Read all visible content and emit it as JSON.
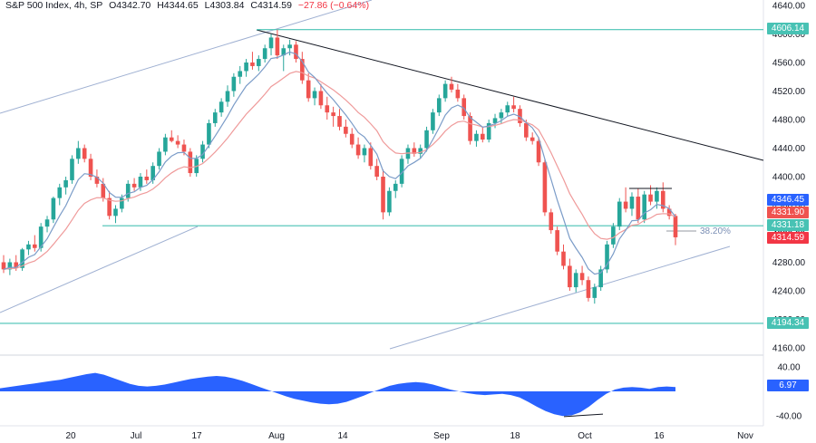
{
  "header": {
    "symbol": "S&P 500 Index, 4h, SP",
    "open": "O4342.70",
    "high": "H4344.65",
    "low": "L4303.84",
    "close": "C4314.59",
    "change": "−27.86 (−0.64%)"
  },
  "price_axis_labels": [
    "4640.00",
    "4600.00",
    "4560.00",
    "4520.00",
    "4480.00",
    "4440.00",
    "4400.00",
    "4360.00",
    "4320.00",
    "4280.00",
    "4240.00",
    "4200.00",
    "4160.00"
  ],
  "time_axis_labels": [
    "20",
    "Jul",
    "17",
    "Aug",
    "14",
    "Sep",
    "18",
    "Oct",
    "16",
    "Nov"
  ],
  "tags": {
    "level_high": "4606.14",
    "ema_fast": "4346.45",
    "ema_slow": "4331.90",
    "level_mid": "4331.18",
    "last_price": "4314.59",
    "level_low": "4194.34"
  },
  "fib_label": "38.20%",
  "osc": {
    "labels": [
      "40.00",
      "-40.00"
    ],
    "last_value": "6.97"
  },
  "colors": {
    "up": "#26a69a",
    "down": "#ef5350",
    "fast_ma": "#7b9cc8",
    "slow_ma": "#ef9a9a",
    "level": "#48c2b4",
    "channel": "#9fb0d2",
    "trend": "#131722",
    "osc_fill": "#2962ff"
  },
  "chart_data": {
    "type": "candlestick",
    "y_range": [
      4160,
      4640
    ],
    "horizontal_levels": [
      4606.14,
      4331.18,
      4194.34
    ],
    "candles_ohlc": [
      [
        4280,
        4290,
        4265,
        4270
      ],
      [
        4270,
        4285,
        4262,
        4280
      ],
      [
        4280,
        4290,
        4268,
        4272
      ],
      [
        4272,
        4300,
        4268,
        4298
      ],
      [
        4298,
        4310,
        4290,
        4305
      ],
      [
        4305,
        4318,
        4295,
        4300
      ],
      [
        4300,
        4335,
        4295,
        4330
      ],
      [
        4330,
        4345,
        4322,
        4340
      ],
      [
        4340,
        4372,
        4335,
        4370
      ],
      [
        4370,
        4390,
        4360,
        4385
      ],
      [
        4385,
        4400,
        4375,
        4395
      ],
      [
        4395,
        4430,
        4390,
        4425
      ],
      [
        4425,
        4450,
        4418,
        4440
      ],
      [
        4440,
        4445,
        4420,
        4425
      ],
      [
        4425,
        4432,
        4395,
        4400
      ],
      [
        4400,
        4410,
        4385,
        4390
      ],
      [
        4390,
        4398,
        4365,
        4370
      ],
      [
        4370,
        4380,
        4340,
        4345
      ],
      [
        4345,
        4360,
        4335,
        4355
      ],
      [
        4355,
        4375,
        4350,
        4370
      ],
      [
        4370,
        4395,
        4365,
        4390
      ],
      [
        4390,
        4398,
        4380,
        4385
      ],
      [
        4385,
        4405,
        4380,
        4400
      ],
      [
        4400,
        4410,
        4390,
        4395
      ],
      [
        4395,
        4420,
        4390,
        4415
      ],
      [
        4415,
        4440,
        4410,
        4435
      ],
      [
        4435,
        4460,
        4430,
        4455
      ],
      [
        4455,
        4465,
        4448,
        4450
      ],
      [
        4450,
        4458,
        4440,
        4445
      ],
      [
        4445,
        4452,
        4430,
        4435
      ],
      [
        4435,
        4440,
        4400,
        4405
      ],
      [
        4405,
        4430,
        4400,
        4425
      ],
      [
        4425,
        4450,
        4420,
        4445
      ],
      [
        4445,
        4480,
        4440,
        4475
      ],
      [
        4475,
        4495,
        4470,
        4490
      ],
      [
        4490,
        4510,
        4484,
        4505
      ],
      [
        4505,
        4528,
        4498,
        4520
      ],
      [
        4520,
        4545,
        4512,
        4540
      ],
      [
        4540,
        4555,
        4530,
        4548
      ],
      [
        4548,
        4565,
        4540,
        4560
      ],
      [
        4560,
        4575,
        4550,
        4555
      ],
      [
        4555,
        4570,
        4548,
        4565
      ],
      [
        4565,
        4585,
        4560,
        4580
      ],
      [
        4580,
        4600,
        4570,
        4595
      ],
      [
        4595,
        4606,
        4565,
        4570
      ],
      [
        4570,
        4585,
        4548,
        4580
      ],
      [
        4580,
        4592,
        4570,
        4585
      ],
      [
        4585,
        4590,
        4560,
        4565
      ],
      [
        4565,
        4575,
        4530,
        4535
      ],
      [
        4535,
        4545,
        4505,
        4510
      ],
      [
        4510,
        4525,
        4500,
        4520
      ],
      [
        4520,
        4530,
        4495,
        4500
      ],
      [
        4500,
        4512,
        4480,
        4490
      ],
      [
        4490,
        4498,
        4470,
        4485
      ],
      [
        4485,
        4495,
        4465,
        4470
      ],
      [
        4470,
        4480,
        4455,
        4460
      ],
      [
        4460,
        4468,
        4440,
        4445
      ],
      [
        4445,
        4455,
        4425,
        4430
      ],
      [
        4430,
        4445,
        4420,
        4440
      ],
      [
        4440,
        4448,
        4410,
        4415
      ],
      [
        4415,
        4425,
        4395,
        4400
      ],
      [
        4400,
        4410,
        4340,
        4350
      ],
      [
        4350,
        4385,
        4345,
        4380
      ],
      [
        4380,
        4395,
        4370,
        4390
      ],
      [
        4390,
        4430,
        4385,
        4425
      ],
      [
        4425,
        4445,
        4418,
        4440
      ],
      [
        4440,
        4448,
        4428,
        4432
      ],
      [
        4432,
        4445,
        4425,
        4440
      ],
      [
        4440,
        4470,
        4435,
        4465
      ],
      [
        4465,
        4495,
        4460,
        4490
      ],
      [
        4490,
        4515,
        4485,
        4510
      ],
      [
        4510,
        4535,
        4505,
        4530
      ],
      [
        4530,
        4540,
        4518,
        4522
      ],
      [
        4522,
        4530,
        4505,
        4510
      ],
      [
        4510,
        4515,
        4480,
        4485
      ],
      [
        4485,
        4490,
        4445,
        4450
      ],
      [
        4450,
        4465,
        4442,
        4460
      ],
      [
        4460,
        4470,
        4448,
        4452
      ],
      [
        4452,
        4480,
        4448,
        4475
      ],
      [
        4475,
        4488,
        4468,
        4482
      ],
      [
        4482,
        4495,
        4475,
        4490
      ],
      [
        4490,
        4505,
        4485,
        4500
      ],
      [
        4500,
        4512,
        4490,
        4495
      ],
      [
        4495,
        4500,
        4470,
        4475
      ],
      [
        4475,
        4480,
        4450,
        4455
      ],
      [
        4455,
        4462,
        4445,
        4450
      ],
      [
        4450,
        4455,
        4415,
        4420
      ],
      [
        4420,
        4425,
        4345,
        4350
      ],
      [
        4350,
        4355,
        4320,
        4325
      ],
      [
        4325,
        4330,
        4290,
        4295
      ],
      [
        4295,
        4305,
        4270,
        4275
      ],
      [
        4275,
        4285,
        4240,
        4245
      ],
      [
        4245,
        4270,
        4238,
        4265
      ],
      [
        4265,
        4275,
        4248,
        4255
      ],
      [
        4255,
        4260,
        4225,
        4230
      ],
      [
        4230,
        4250,
        4222,
        4245
      ],
      [
        4245,
        4275,
        4240,
        4270
      ],
      [
        4270,
        4310,
        4265,
        4305
      ],
      [
        4305,
        4335,
        4300,
        4330
      ],
      [
        4330,
        4370,
        4325,
        4365
      ],
      [
        4365,
        4385,
        4350,
        4355
      ],
      [
        4355,
        4378,
        4345,
        4372
      ],
      [
        4372,
        4384,
        4335,
        4340
      ],
      [
        4340,
        4380,
        4335,
        4375
      ],
      [
        4375,
        4388,
        4360,
        4365
      ],
      [
        4365,
        4385,
        4355,
        4380
      ],
      [
        4380,
        4392,
        4350,
        4355
      ],
      [
        4355,
        4360,
        4340,
        4345
      ],
      [
        4345,
        4348,
        4304,
        4315
      ]
    ],
    "oscillator_range": [
      -50,
      50
    ],
    "oscillator_values": [
      5,
      7,
      9,
      11,
      13,
      15,
      17,
      19,
      22,
      25,
      28,
      30,
      27,
      22,
      17,
      12,
      9,
      8,
      9,
      11,
      14,
      17,
      20,
      22,
      24,
      25,
      24,
      21,
      17,
      12,
      7,
      2,
      -3,
      -8,
      -12,
      -15,
      -18,
      -20,
      -21,
      -20,
      -17,
      -12,
      -7,
      -1,
      4,
      9,
      12,
      14,
      15,
      14,
      11,
      7,
      3,
      0,
      -3,
      -5,
      -6,
      -5,
      -4,
      -6,
      -10,
      -17,
      -25,
      -32,
      -37,
      -40,
      -39,
      -34,
      -25,
      -14,
      -4,
      3,
      6,
      7,
      6,
      4,
      7,
      8,
      7
    ]
  }
}
